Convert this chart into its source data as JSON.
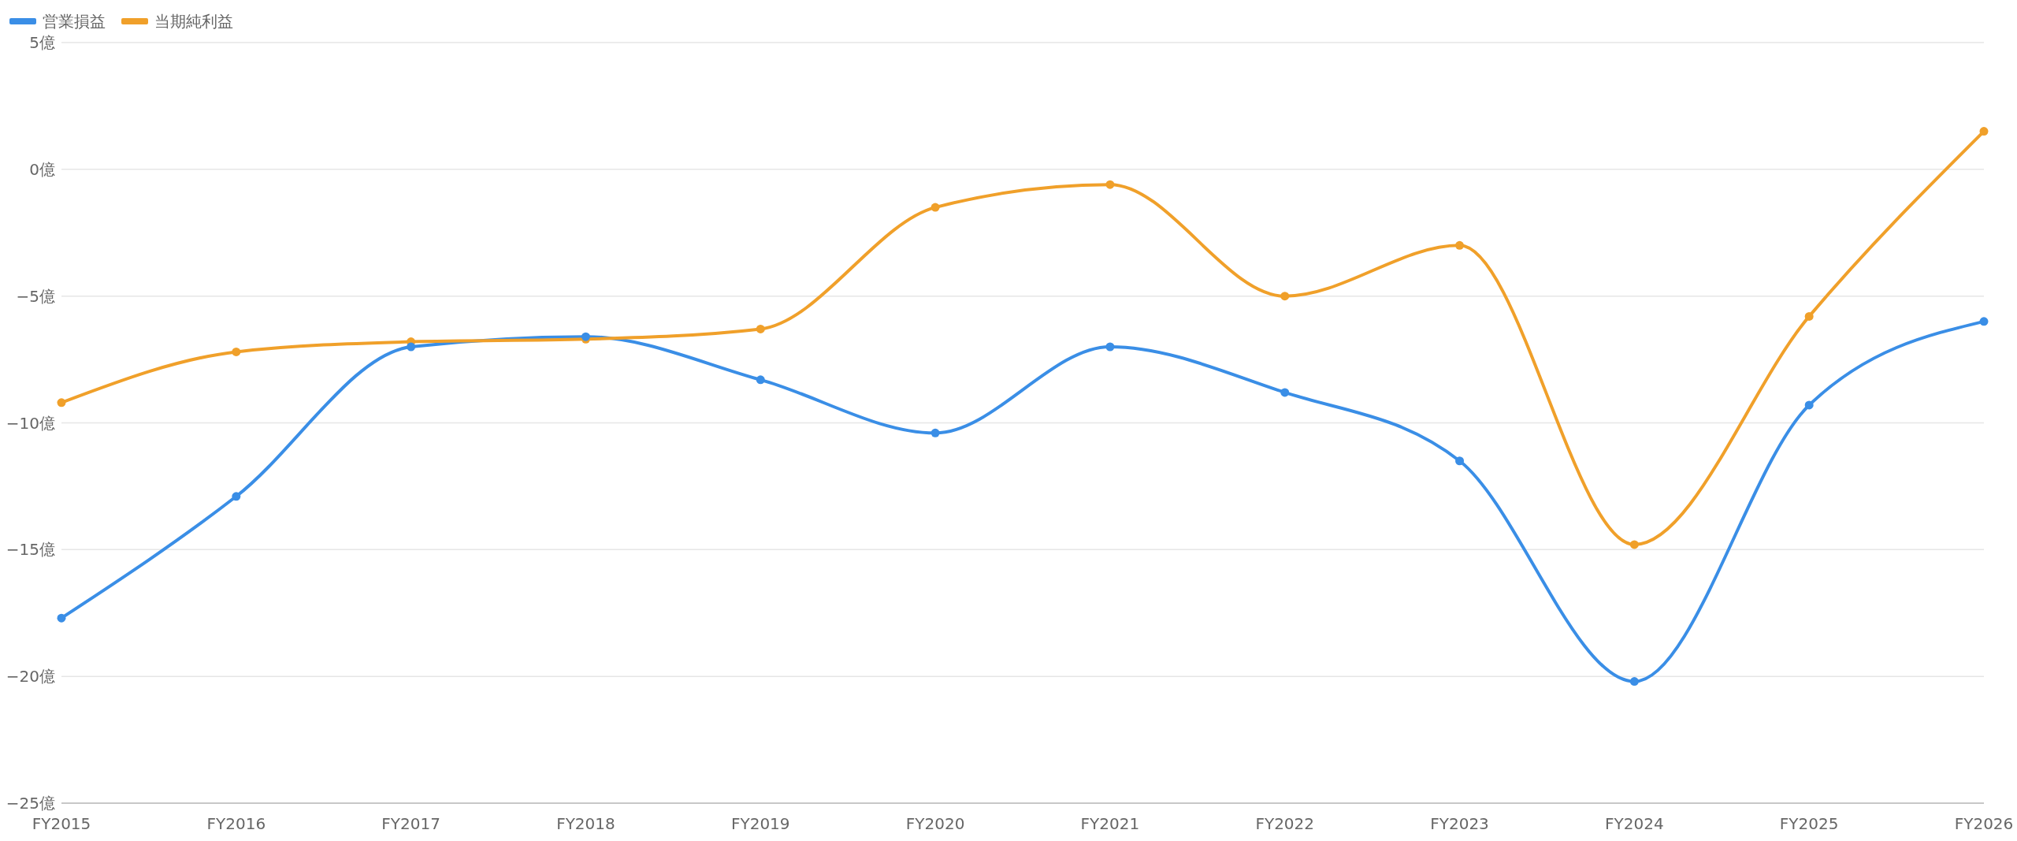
{
  "chart_data": {
    "type": "line",
    "categories": [
      "FY2015",
      "FY2016",
      "FY2017",
      "FY2018",
      "FY2019",
      "FY2020",
      "FY2021",
      "FY2022",
      "FY2023",
      "FY2024",
      "FY2025",
      "FY2026"
    ],
    "series": [
      {
        "name": "営業損益",
        "color": "#3a8ee6",
        "values": [
          -17.7,
          -12.9,
          -7.0,
          -6.6,
          -8.3,
          -10.4,
          -7.0,
          -8.8,
          -11.5,
          -20.2,
          -9.3,
          -6.0
        ]
      },
      {
        "name": "当期純利益",
        "color": "#f0a02a",
        "values": [
          -9.2,
          -7.2,
          -6.8,
          -6.7,
          -6.3,
          -1.5,
          -0.6,
          -5.0,
          -3.0,
          -14.8,
          -5.8,
          1.5
        ]
      }
    ],
    "ylim": [
      -25,
      5
    ],
    "yticks": [
      {
        "value": -25,
        "label": "−25億"
      },
      {
        "value": -20,
        "label": "−20億"
      },
      {
        "value": -15,
        "label": "−15億"
      },
      {
        "value": -10,
        "label": "−10億"
      },
      {
        "value": -5,
        "label": "−5億"
      },
      {
        "value": 0,
        "label": "0億"
      },
      {
        "value": 5,
        "label": "5億"
      }
    ],
    "grid": "y",
    "legend": "top left",
    "marker": "circle",
    "line_style": "solid"
  }
}
